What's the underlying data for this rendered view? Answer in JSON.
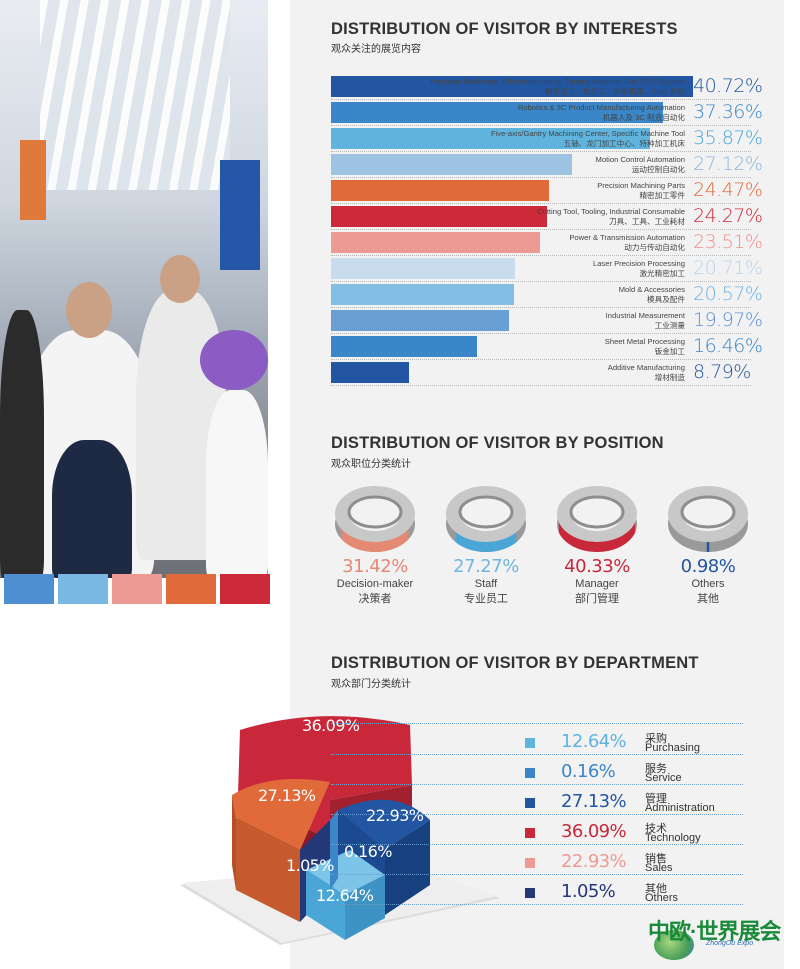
{
  "colors": {
    "navy": "#2356a2",
    "blue": "#3a86c8",
    "sky": "#5fb4dd",
    "lightblue": "#9ec3e2",
    "paleblue": "#c8dcee",
    "orange": "#e06a3a",
    "red": "#c8283a",
    "pink": "#ee9a94",
    "darknavy": "#243878",
    "grey": "#a8a8a8"
  },
  "photo": {
    "icon": "exhibition-crowd-photo",
    "swatches": [
      "#4d8fd0",
      "#7ab8e4",
      "#ee9a94",
      "#e06a3a",
      "#cc2a38"
    ]
  },
  "interests": {
    "title": "DISTRIBUTION OF VISITOR BY INTERESTS",
    "subtitle": "观众关注的展览内容"
  },
  "position": {
    "title": "DISTRIBUTION OF VISITOR BY POSITION",
    "subtitle": "观众职位分类统计"
  },
  "department": {
    "title": "DISTRIBUTION OF VISITOR BY DEPARTMENT",
    "subtitle": "观众部门分类统计"
  },
  "logo": {
    "text": "中欧·世界展会",
    "subtext": "ZhongOu Expo"
  },
  "chart_data": [
    {
      "type": "bar",
      "title": "DISTRIBUTION OF VISITOR BY INTERESTS",
      "xlim": [
        0,
        45
      ],
      "bars": [
        {
          "en": "Precision Machining, Electromachining, Turning Machine Tool, CNC System",
          "zh": "精密加工、电加工、车削机床、CNC 系统",
          "value": 40.72,
          "label": "40.72%",
          "color": "#2356a2",
          "label_color": "#2356a2"
        },
        {
          "en": "Robotics & 3C Product Manufacturing Automation",
          "zh": "机器人及 3C 制造自动化",
          "value": 37.36,
          "label": "37.36%",
          "color": "#3a86c8",
          "label_color": "#3a86c8"
        },
        {
          "en": "Five-axis/Gantry Machining Center, Specific Machine Tool",
          "zh": "五轴、龙门加工中心、特种加工机床",
          "value": 35.87,
          "label": "35.87%",
          "color": "#5fb4dd",
          "label_color": "#4aa6d6"
        },
        {
          "en": "Motion Control Automation",
          "zh": "运动控制自动化",
          "value": 27.12,
          "label": "27.12%",
          "color": "#9ec3e2",
          "label_color": "#8fb6dc"
        },
        {
          "en": "Precision Machining Parts",
          "zh": "精密加工零件",
          "value": 24.47,
          "label": "24.47%",
          "color": "#e06a3a",
          "label_color": "#e06a3a"
        },
        {
          "en": "Cutting Tool, Tooling, Industrial Consumable",
          "zh": "刀具、工具、工业耗材",
          "value": 24.27,
          "label": "24.27%",
          "color": "#cc2a38",
          "label_color": "#cc2a38"
        },
        {
          "en": "Power & Transmission Automation",
          "zh": "动力与传动自动化",
          "value": 23.51,
          "label": "23.51%",
          "color": "#ee9a94",
          "label_color": "#ee8f88"
        },
        {
          "en": "Laser Precision Processing",
          "zh": "激光精密加工",
          "value": 20.71,
          "label": "20.71%",
          "color": "#c8dcee",
          "label_color": "#b9d3ea"
        },
        {
          "en": "Mold & Accessories",
          "zh": "模具及配件",
          "value": 20.57,
          "label": "20.57%",
          "color": "#82bde3",
          "label_color": "#6fb2de"
        },
        {
          "en": "Industrial Measurement",
          "zh": "工业测量",
          "value": 19.97,
          "label": "19.97%",
          "color": "#6a9fd4",
          "label_color": "#5a93cf"
        },
        {
          "en": "Sheet Metal Processing",
          "zh": "钣金加工",
          "value": 16.46,
          "label": "16.46%",
          "color": "#3a86c8",
          "label_color": "#3a86c8"
        },
        {
          "en": "Additive Manufacturing",
          "zh": "增材制造",
          "value": 8.79,
          "label": "8.79%",
          "color": "#2356a2",
          "label_color": "#2356a2"
        }
      ]
    },
    {
      "type": "pie",
      "title": "DISTRIBUTION OF VISITOR BY POSITION",
      "items": [
        {
          "en": "Decision-maker",
          "zh": "决策者",
          "value": 31.42,
          "label": "31.42%",
          "color": "#e58a72",
          "label_color": "#e58a72"
        },
        {
          "en": "Staff",
          "zh": "专业员工",
          "value": 27.27,
          "label": "27.27%",
          "color": "#4aa6d6",
          "label_color": "#6fb6e0"
        },
        {
          "en": "Manager",
          "zh": "部门管理",
          "value": 40.33,
          "label": "40.33%",
          "color": "#c8283a",
          "label_color": "#c8283a"
        },
        {
          "en": "Others",
          "zh": "其他",
          "value": 0.98,
          "label": "0.98%",
          "color": "#2356a2",
          "label_color": "#2356a2"
        }
      ]
    },
    {
      "type": "pie",
      "title": "DISTRIBUTION OF VISITOR BY DEPARTMENT",
      "slices": [
        {
          "zh": "采购",
          "en": "Purchasing",
          "value": 12.64,
          "label": "12.64%",
          "color": "#5fb4dd",
          "label_color": "#5fb4dd"
        },
        {
          "zh": "服务",
          "en": "Service",
          "value": 0.16,
          "label": "0.16%",
          "color": "#3a86c8",
          "label_color": "#3a86c8"
        },
        {
          "zh": "管理",
          "en": "Administration",
          "value": 27.13,
          "label": "27.13%",
          "color": "#2356a2",
          "label_color": "#2356a2"
        },
        {
          "zh": "技术",
          "en": "Technology",
          "value": 36.09,
          "label": "36.09%",
          "color": "#c8283a",
          "label_color": "#c8283a"
        },
        {
          "zh": "销售",
          "en": "Sales",
          "value": 22.93,
          "label": "22.93%",
          "color": "#ee9a94",
          "label_color": "#ee9a94"
        },
        {
          "zh": "其他",
          "en": "Others",
          "value": 1.05,
          "label": "1.05%",
          "color": "#243878",
          "label_color": "#243878"
        }
      ],
      "pie_labels": {
        "technology": "36.09%",
        "administration": "27.13%",
        "sales": "22.93%",
        "others": "1.05%",
        "service": "0.16%",
        "purchasing": "12.64%"
      }
    }
  ]
}
